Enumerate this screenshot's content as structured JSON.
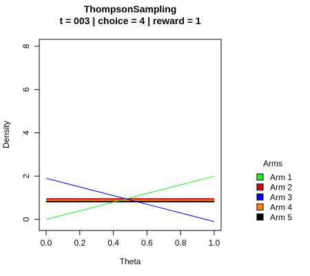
{
  "chart_data": {
    "type": "line",
    "title": "ThompsonSampling",
    "subtitle": "t = 003 | choice = 4 | reward = 1",
    "xlabel": "Theta",
    "ylabel": "Density",
    "xlim": [
      0,
      1
    ],
    "ylim": [
      0,
      8
    ],
    "x_ticks": [
      "0.0",
      "0.2",
      "0.4",
      "0.6",
      "0.8",
      "1.0"
    ],
    "y_ticks": [
      "0",
      "2",
      "4",
      "6",
      "8"
    ],
    "legend": {
      "title": "Arms",
      "placement": "right"
    },
    "series": [
      {
        "name": "Arm 1",
        "color": "#22ee22",
        "x": [
          0,
          1
        ],
        "y": [
          0.0,
          2.0
        ]
      },
      {
        "name": "Arm 2",
        "color": "#dd0000",
        "x": [
          0,
          1
        ],
        "y": [
          0.95,
          0.95
        ]
      },
      {
        "name": "Arm 3",
        "color": "#0000ee",
        "x": [
          0,
          1
        ],
        "y": [
          1.9,
          -0.1
        ]
      },
      {
        "name": "Arm 4",
        "color": "#ff8800",
        "x": [
          0,
          1
        ],
        "y": [
          0.88,
          0.88
        ]
      },
      {
        "name": "Arm 5",
        "color": "#000000",
        "x": [
          0,
          1
        ],
        "y": [
          0.82,
          0.82
        ]
      }
    ]
  }
}
